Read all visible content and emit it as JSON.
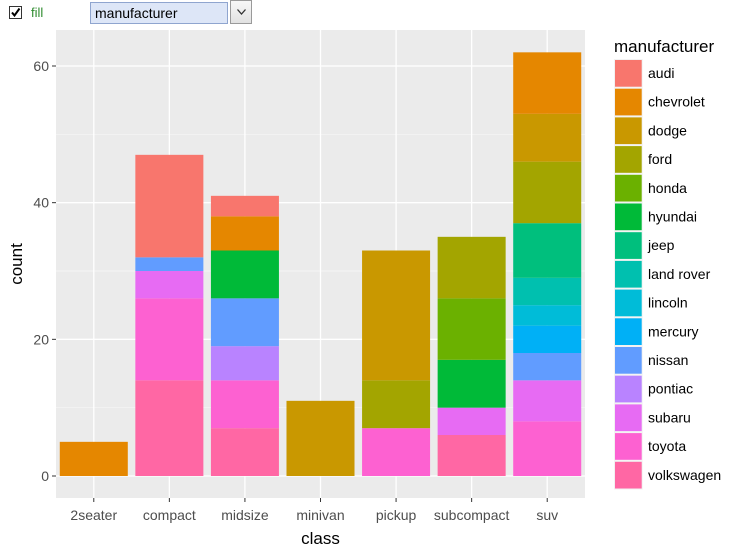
{
  "controls": {
    "fill_checked": true,
    "fill_label": "fill",
    "fill_variable": "manufacturer"
  },
  "chart_data": {
    "type": "bar",
    "stacked": true,
    "xlabel": "class",
    "ylabel": "count",
    "ylim": [
      0,
      64
    ],
    "yticks": [
      0,
      20,
      40,
      60
    ],
    "grid": true,
    "legend_title": "manufacturer",
    "legend_position": "right",
    "categories": [
      "2seater",
      "compact",
      "midsize",
      "minivan",
      "pickup",
      "subcompact",
      "suv"
    ],
    "series": [
      {
        "name": "audi",
        "color": "#F8766D",
        "values": [
          0,
          15,
          3,
          0,
          0,
          0,
          0
        ]
      },
      {
        "name": "chevrolet",
        "color": "#E58700",
        "values": [
          5,
          0,
          5,
          0,
          0,
          0,
          9
        ]
      },
      {
        "name": "dodge",
        "color": "#C99800",
        "values": [
          0,
          0,
          0,
          11,
          19,
          0,
          7
        ]
      },
      {
        "name": "ford",
        "color": "#A3A500",
        "values": [
          0,
          0,
          0,
          0,
          7,
          9,
          9
        ]
      },
      {
        "name": "honda",
        "color": "#6BB100",
        "values": [
          0,
          0,
          0,
          0,
          0,
          9,
          0
        ]
      },
      {
        "name": "hyundai",
        "color": "#00BA38",
        "values": [
          0,
          0,
          7,
          0,
          0,
          7,
          0
        ]
      },
      {
        "name": "jeep",
        "color": "#00BF7D",
        "values": [
          0,
          0,
          0,
          0,
          0,
          0,
          8
        ]
      },
      {
        "name": "land rover",
        "color": "#00C0AF",
        "values": [
          0,
          0,
          0,
          0,
          0,
          0,
          4
        ]
      },
      {
        "name": "lincoln",
        "color": "#00BCD8",
        "values": [
          0,
          0,
          0,
          0,
          0,
          0,
          3
        ]
      },
      {
        "name": "mercury",
        "color": "#00B0F6",
        "values": [
          0,
          0,
          0,
          0,
          0,
          0,
          4
        ]
      },
      {
        "name": "nissan",
        "color": "#619CFF",
        "values": [
          0,
          2,
          7,
          0,
          0,
          0,
          4
        ]
      },
      {
        "name": "pontiac",
        "color": "#B983FF",
        "values": [
          0,
          0,
          5,
          0,
          0,
          0,
          0
        ]
      },
      {
        "name": "subaru",
        "color": "#E76BF3",
        "values": [
          0,
          4,
          0,
          0,
          0,
          4,
          6
        ]
      },
      {
        "name": "toyota",
        "color": "#FD61D1",
        "values": [
          0,
          12,
          7,
          0,
          7,
          0,
          8
        ]
      },
      {
        "name": "volkswagen",
        "color": "#FF67A4",
        "values": [
          0,
          14,
          7,
          0,
          0,
          6,
          0
        ]
      }
    ]
  }
}
